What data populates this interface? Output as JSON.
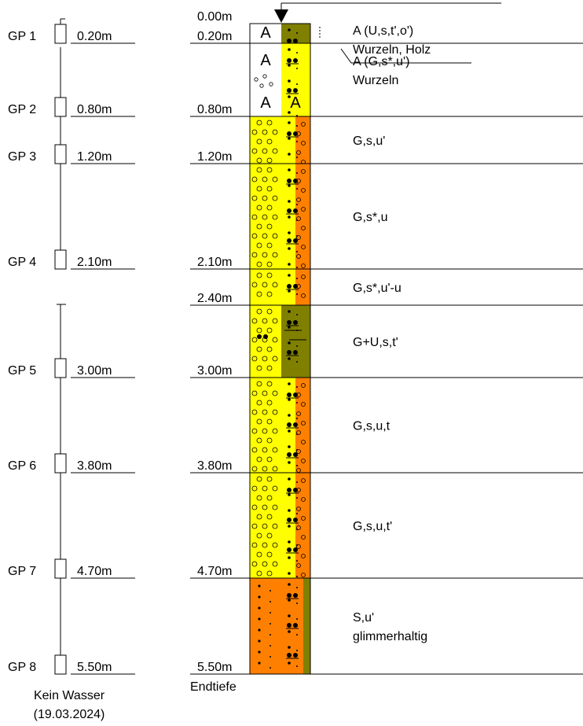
{
  "depth_labels": [
    {
      "depth": 0.0,
      "label": "0.00m"
    },
    {
      "depth": 0.2,
      "label": "0.20m"
    },
    {
      "depth": 0.8,
      "label": "0.80m"
    },
    {
      "depth": 1.2,
      "label": "1.20m"
    },
    {
      "depth": 2.1,
      "label": "2.10m"
    },
    {
      "depth": 2.4,
      "label": "2.40m"
    },
    {
      "depth": 3.0,
      "label": "3.00m"
    },
    {
      "depth": 3.8,
      "label": "3.80m"
    },
    {
      "depth": 4.7,
      "label": "4.70m"
    },
    {
      "depth": 5.5,
      "label": "5.50m"
    }
  ],
  "endtiefe_label": "Endtiefe",
  "samples": [
    {
      "name": "GP 1",
      "depth": 0.2,
      "label": "0.20m"
    },
    {
      "name": "GP 2",
      "depth": 0.8,
      "label": "0.80m"
    },
    {
      "name": "GP 3",
      "depth": 1.2,
      "label": "1.20m"
    },
    {
      "name": "GP 4",
      "depth": 2.1,
      "label": "2.10m"
    },
    {
      "name": "GP 5",
      "depth": 3.0,
      "label": "3.00m"
    },
    {
      "name": "GP 6",
      "depth": 3.8,
      "label": "3.80m"
    },
    {
      "name": "GP 7",
      "depth": 4.7,
      "label": "4.70m"
    },
    {
      "name": "GP 8",
      "depth": 5.5,
      "label": "5.50m"
    }
  ],
  "water_note": [
    "Kein Wasser",
    "(19.03.2024)"
  ],
  "layers": [
    {
      "top": 0.0,
      "bottom": 0.2,
      "left_fill": "#ffffff",
      "right_fill": "#808000",
      "description": [
        "A (U,s,t',o')",
        "Wurzeln, Holz"
      ]
    },
    {
      "top": 0.2,
      "bottom": 0.8,
      "left_fill": "#ffffff",
      "right_fill": "#ffff00",
      "description": [
        "A (G,s*,u')",
        "Wurzeln"
      ]
    },
    {
      "top": 0.8,
      "bottom": 1.2,
      "left_fill": "#ffff00",
      "right_fill": "#ff8000",
      "description": [
        "G,s,u'"
      ]
    },
    {
      "top": 1.2,
      "bottom": 2.1,
      "left_fill": "#ffff00",
      "right_fill": "#ff8000",
      "description": [
        "G,s*,u"
      ]
    },
    {
      "top": 2.1,
      "bottom": 2.4,
      "left_fill": "#ffff00",
      "right_fill": "#ff8000",
      "description": [
        "G,s*,u'-u"
      ]
    },
    {
      "top": 2.4,
      "bottom": 3.0,
      "left_fill": "#ffff00",
      "right_fill": "#808000",
      "description": [
        "G+U,s,t'"
      ]
    },
    {
      "top": 3.0,
      "bottom": 3.8,
      "left_fill": "#ffff00",
      "right_fill": "#ff8000",
      "description": [
        "G,s,u,t"
      ]
    },
    {
      "top": 3.8,
      "bottom": 4.7,
      "left_fill": "#ffff00",
      "right_fill": "#ff8000",
      "description": [
        "G,s,u,t'"
      ]
    },
    {
      "top": 4.7,
      "bottom": 5.5,
      "left_fill": "#ff8000",
      "right_fill": "#808000",
      "description": [
        "S,u'",
        "glimmerhaltig"
      ]
    }
  ],
  "fill_symbol_letter": "A",
  "colors": {
    "gravel_yellow": "#ffff00",
    "sand_orange": "#ff8000",
    "silt_olive": "#808000",
    "line": "#000000"
  }
}
